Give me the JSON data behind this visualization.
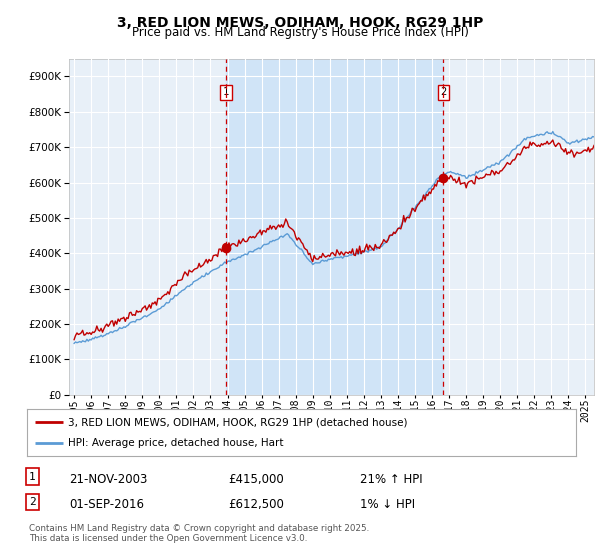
{
  "title": "3, RED LION MEWS, ODIHAM, HOOK, RG29 1HP",
  "subtitle": "Price paid vs. HM Land Registry's House Price Index (HPI)",
  "legend_line1": "3, RED LION MEWS, ODIHAM, HOOK, RG29 1HP (detached house)",
  "legend_line2": "HPI: Average price, detached house, Hart",
  "annotation1": {
    "label": "1",
    "date": "21-NOV-2003",
    "price": "£415,000",
    "pct": "21% ↑ HPI",
    "x_year": 2003.9
  },
  "annotation2": {
    "label": "2",
    "date": "01-SEP-2016",
    "price": "£612,500",
    "pct": "1% ↓ HPI",
    "x_year": 2016.67
  },
  "footer": "Contains HM Land Registry data © Crown copyright and database right 2025.\nThis data is licensed under the Open Government Licence v3.0.",
  "hpi_color": "#5b9bd5",
  "price_color": "#c00000",
  "vline_color": "#cc0000",
  "annotation_color": "#cc0000",
  "background_color": "#ddeeff",
  "plot_bg_color": "#e8f0f8",
  "shade_color": "#d0e4f7",
  "grid_color": "#ffffff",
  "ylim": [
    0,
    950000
  ],
  "yticks": [
    0,
    100000,
    200000,
    300000,
    400000,
    500000,
    600000,
    700000,
    800000,
    900000
  ],
  "xlim_start": 1994.7,
  "xlim_end": 2025.5,
  "vline1_x": 2003.9,
  "vline2_x": 2016.67,
  "buy1_price": 415000,
  "buy2_price": 612500
}
